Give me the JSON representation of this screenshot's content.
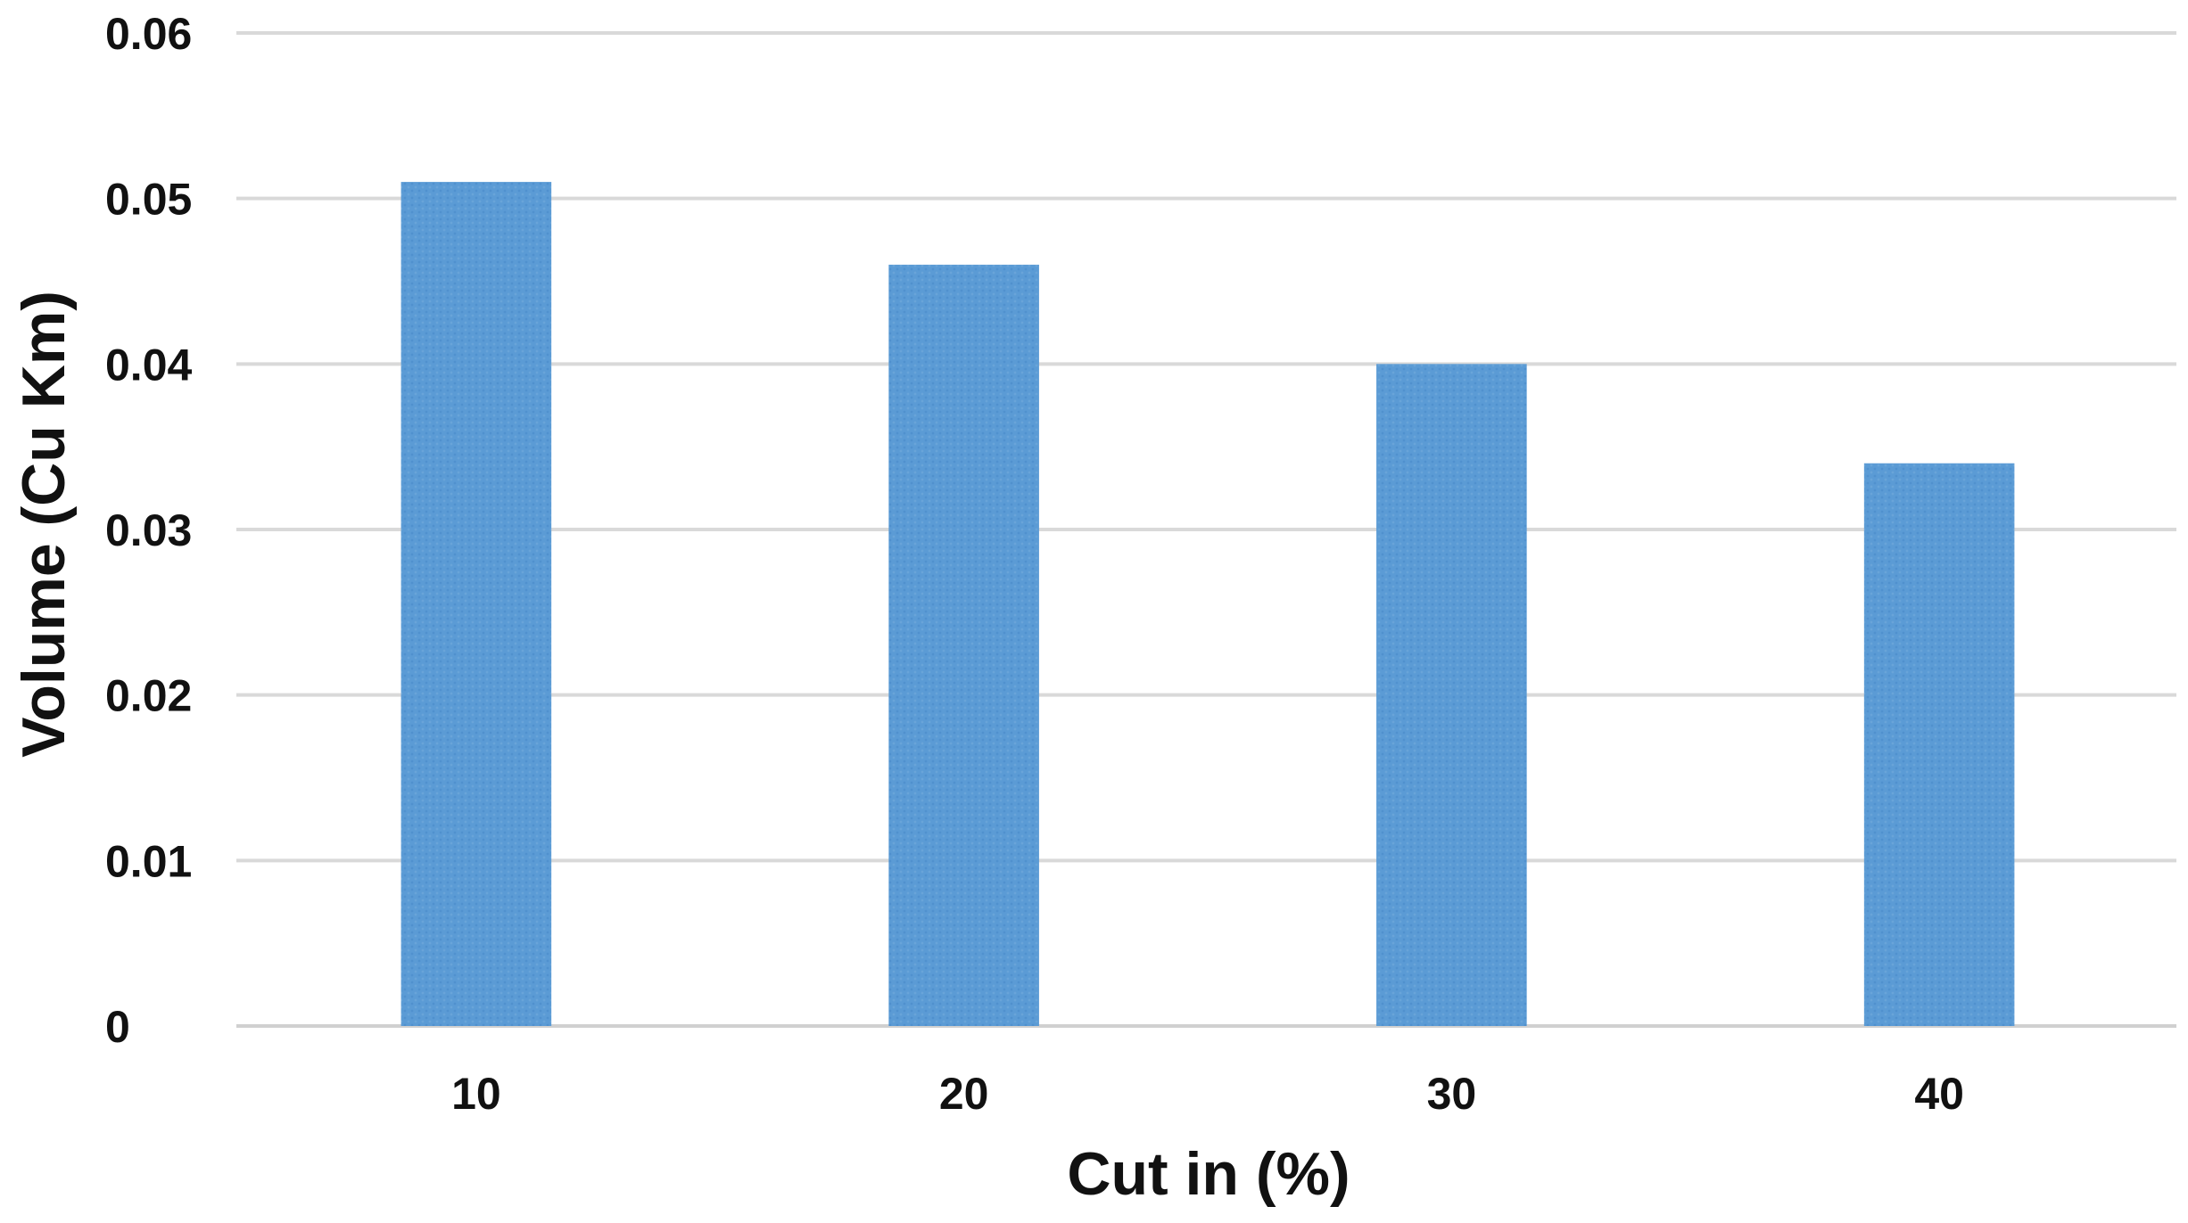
{
  "chart_data": {
    "type": "bar",
    "title": "",
    "xlabel": "Cut in (%)",
    "ylabel": "Volume (Cu Km)",
    "categories": [
      "10",
      "20",
      "30",
      "40"
    ],
    "values": [
      0.051,
      0.046,
      0.04,
      0.034
    ],
    "ylim": [
      0,
      0.06
    ],
    "yticks": [
      "0",
      "0.01",
      "0.02",
      "0.03",
      "0.04",
      "0.05",
      "0.06"
    ],
    "grid": true,
    "legend": "none",
    "bar_color": "#5b9bd5"
  }
}
